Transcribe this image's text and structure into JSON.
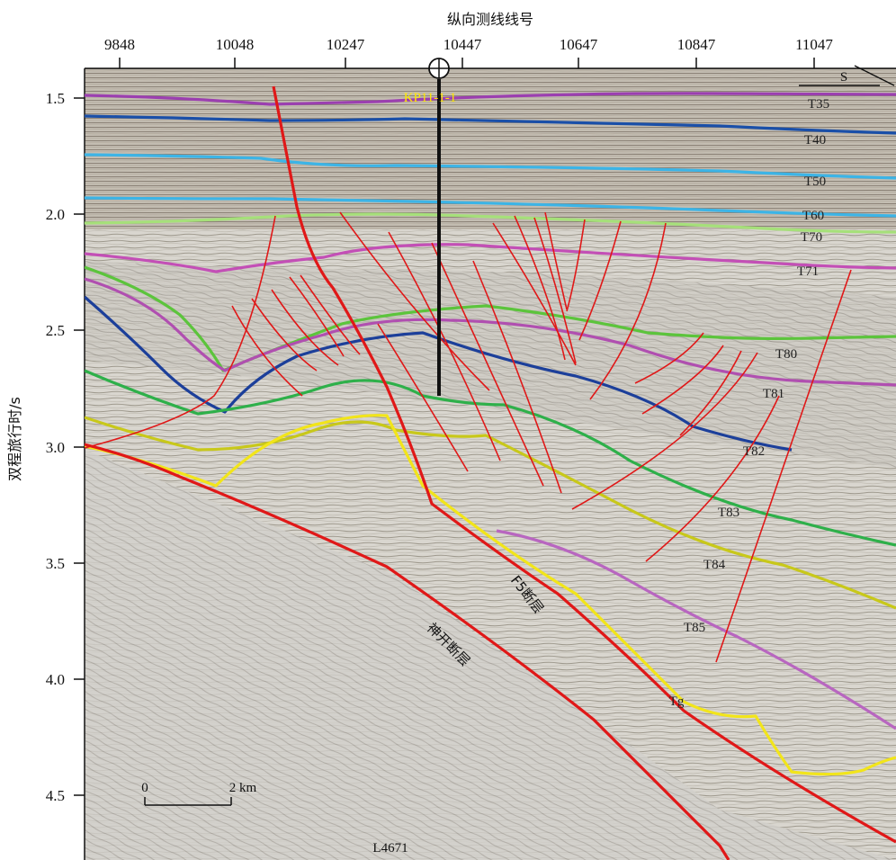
{
  "top_axis": {
    "title": "纵向测线线号",
    "ticks": [
      "9848",
      "10048",
      "10247",
      "10447",
      "10647",
      "10847",
      "11047"
    ]
  },
  "left_axis": {
    "title": "双程旅行时/s",
    "ticks": [
      "1.5",
      "2.0",
      "2.5",
      "3.0",
      "3.5",
      "4.0",
      "4.5"
    ]
  },
  "well": {
    "label": "KP11-1-1"
  },
  "direction": {
    "label": "S"
  },
  "line_name": "L4671",
  "scale_bar": {
    "start": "0",
    "end": "2 km"
  },
  "horizons": [
    {
      "label": "T35",
      "color": "#9b3fb0"
    },
    {
      "label": "T40",
      "color": "#1a4fa8"
    },
    {
      "label": "T50",
      "color": "#3cb4e6"
    },
    {
      "label": "T60",
      "color": "#3cb4e6"
    },
    {
      "label": "T70",
      "color": "#a6e07a"
    },
    {
      "label": "T71",
      "color": "#c34fb6"
    },
    {
      "label": "T80",
      "color": "#5cc43c"
    },
    {
      "label": "T81",
      "color": "#b04fb0"
    },
    {
      "label": "T82",
      "color": "#1c3f9a"
    },
    {
      "label": "T83",
      "color": "#2eb04a"
    },
    {
      "label": "T84",
      "color": "#c8c81a"
    },
    {
      "label": "T85",
      "color": "#b866c0"
    },
    {
      "label": "Tg",
      "color": "#f2e51a"
    }
  ],
  "faults": {
    "f5_label": "F5断层",
    "shenkai_label": "神开断层",
    "color": "#e01818"
  }
}
